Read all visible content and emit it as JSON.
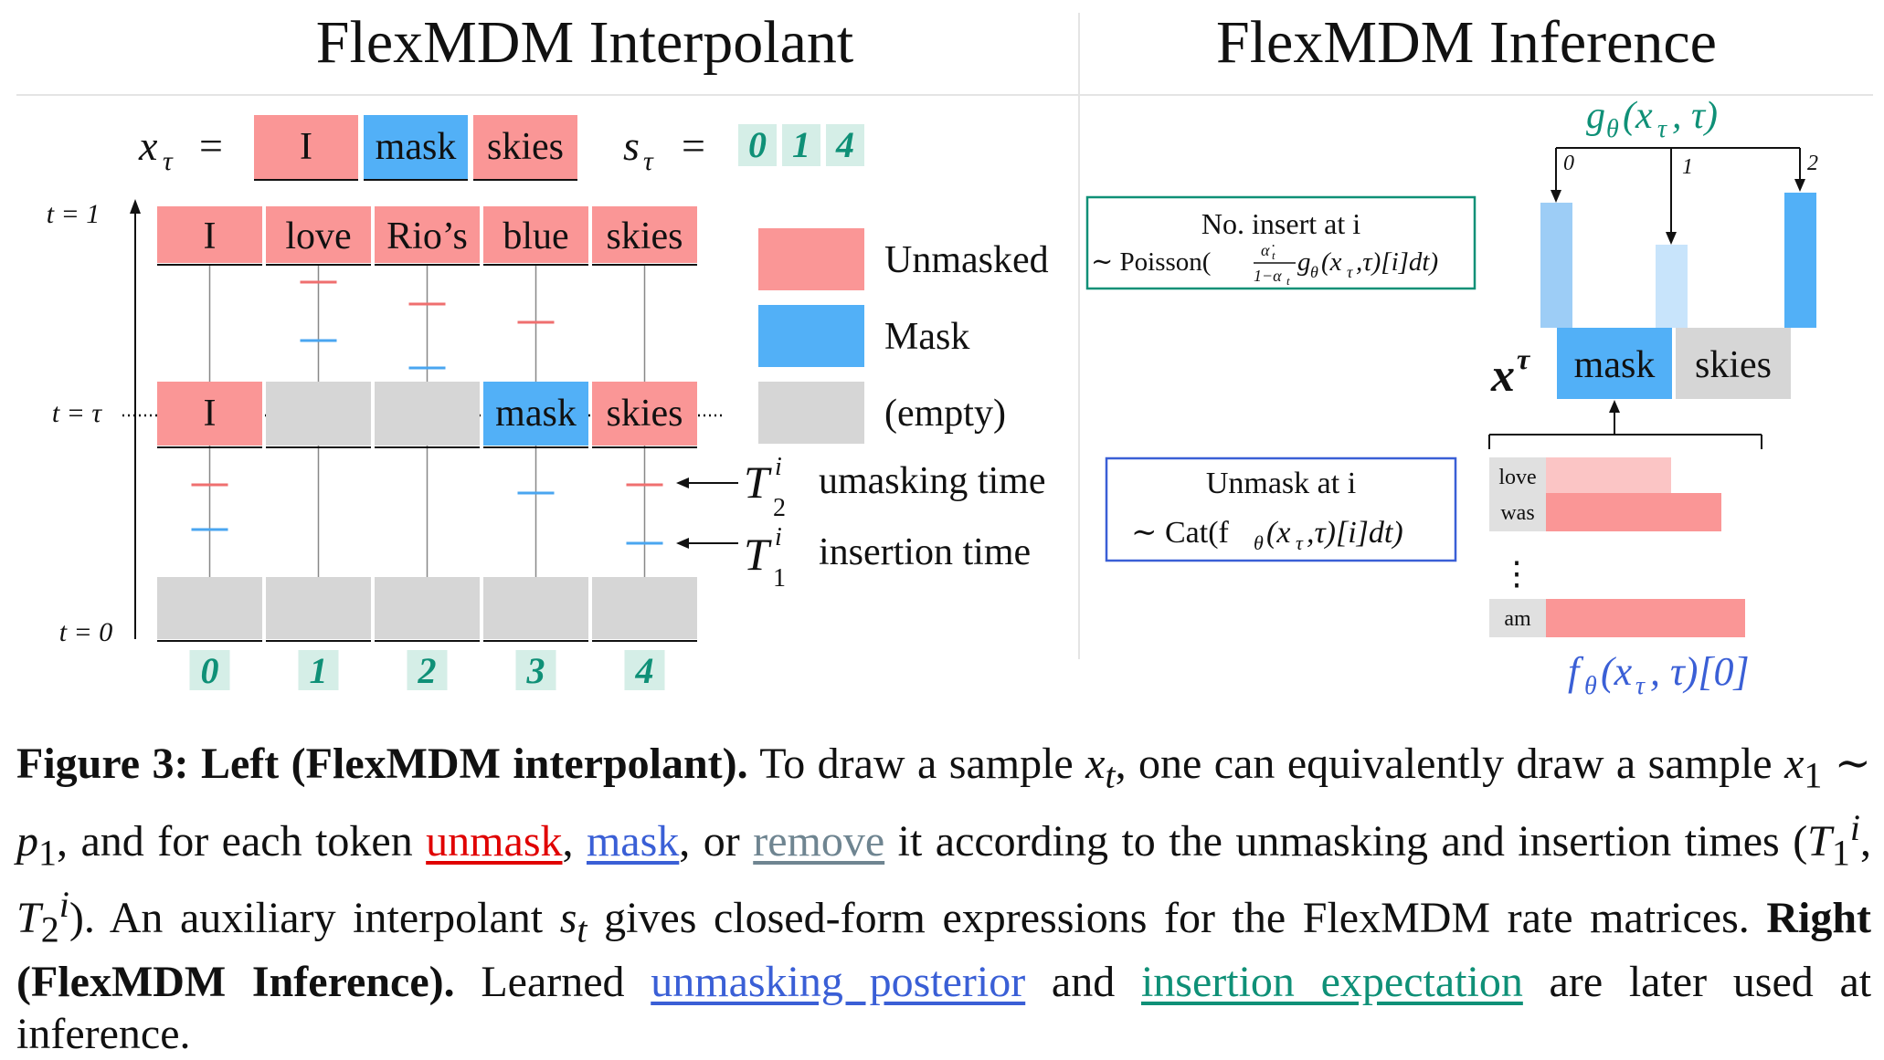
{
  "colors": {
    "unmasked": "#fa9696",
    "mask": "#52b0f7",
    "empty": "#d6d6d6",
    "teal": "#0f9077",
    "teal_bg": "#d5eee7",
    "blue_text": "#3a5fd6",
    "light_pink": "#fbc5c5",
    "light_blue_1": "#9dcdf6",
    "light_blue_2": "#c8e4fb"
  },
  "left": {
    "title": "FlexMDM Interpolant",
    "x_tau_label": "x",
    "x_tau_sub": "τ",
    "eq_sign": "=",
    "x_tau_tokens": [
      "I",
      "mask",
      "skies"
    ],
    "s_tau_label": "s",
    "s_tau_sub": "τ",
    "s_tau_values": [
      "0",
      "1",
      "4"
    ],
    "time_labels": {
      "t1": "t = 1",
      "ttau": "t = τ",
      "t0": "t = 0"
    },
    "row_t1": [
      "I",
      "love",
      "Rio’s",
      "blue",
      "skies"
    ],
    "row_tau": [
      {
        "text": "I",
        "state": "unmasked"
      },
      {
        "text": "",
        "state": "empty"
      },
      {
        "text": "",
        "state": "empty"
      },
      {
        "text": "mask",
        "state": "mask"
      },
      {
        "text": "skies",
        "state": "unmasked"
      }
    ],
    "positions": [
      "0",
      "1",
      "2",
      "3",
      "4"
    ],
    "legend": [
      {
        "label": "Unmasked",
        "state": "unmasked"
      },
      {
        "label": "Mask",
        "state": "mask"
      },
      {
        "label": "(empty)",
        "state": "empty"
      }
    ],
    "arrow_labels": {
      "t2_symbol": "T",
      "t2_sub": "2",
      "t2_sup": "i",
      "t2_text": "umasking time",
      "t1_symbol": "T",
      "t1_sub": "1",
      "t1_sup": "i",
      "t1_text": "insertion time"
    }
  },
  "right": {
    "title": "FlexMDM Inference",
    "g_label": "g",
    "g_sub": "θ",
    "g_args": "(x",
    "g_args_sub": "τ",
    "g_args_end": ", τ)",
    "g_branches": [
      "0",
      "1",
      "2"
    ],
    "insert_box": {
      "line1": "No. insert at i",
      "line2_prefix": "∼ Poisson(",
      "frac_num": "α̇",
      "frac_num_sub": "t",
      "frac_den": "1−α",
      "frac_den_sub": "t",
      "line2_suffix": "g",
      "line2_suffix_sub": "θ",
      "line2_end": "(x",
      "line2_end_sub": "τ",
      "line2_tail": ",τ)[i]dt)"
    },
    "unmask_box": {
      "line1": "Unmask at i",
      "line2_prefix": "∼ Cat(f",
      "line2_sub": "θ",
      "line2_mid": "(x",
      "line2_mid_sub": "τ",
      "line2_tail": ",τ)[i]dt)"
    },
    "x_tau": {
      "label": "x",
      "sup": "τ",
      "tokens": [
        "mask",
        "skies"
      ]
    },
    "vocab": [
      {
        "word": "love",
        "prob": 0.63
      },
      {
        "word": "was",
        "prob": 0.88
      },
      {
        "word": "am",
        "prob": 1.0
      }
    ],
    "ellipsis": "⋮",
    "f_label": "f",
    "f_sub": "θ",
    "f_args": "(x",
    "f_args_sub": "τ",
    "f_tail": ", τ)[0]"
  },
  "caption": {
    "fig_label": "Figure 3:",
    "left_head": "Left (FlexMDM interpolant).",
    "p1": "To draw a sample",
    "x_t": "x",
    "x_t_sub": "t",
    "p2": ", one can equivalently draw a sample",
    "x_1": "x",
    "x_1_sub": "1",
    "sim": " ∼ ",
    "p_1": "p",
    "p_1_sub": "1",
    "p3": ", and for each token",
    "w_unmask": "unmask",
    "comma1": ",",
    "w_mask": "mask",
    "p4": ", or",
    "w_remove": "remove",
    "p5": "it according to the unmasking and insertion times",
    "T_open": "(",
    "T1": "T",
    "T1_sub": "1",
    "T1_sup": "i",
    "T_comma": ", ",
    "T2": "T",
    "T2_sub": "2",
    "T2_sup": "i",
    "T_close": ").",
    "p6": "An auxiliary interpolant",
    "s_t": "s",
    "s_t_sub": "t",
    "p7": "gives closed-form expressions for the FlexMDM rate matrices.",
    "right_head": "Right (FlexMDM Inference).",
    "p8": "Learned",
    "w_posterior": "unmasking posterior",
    "p9": "and",
    "w_insertion": "insertion expectation",
    "p10": "are later used at inference."
  }
}
